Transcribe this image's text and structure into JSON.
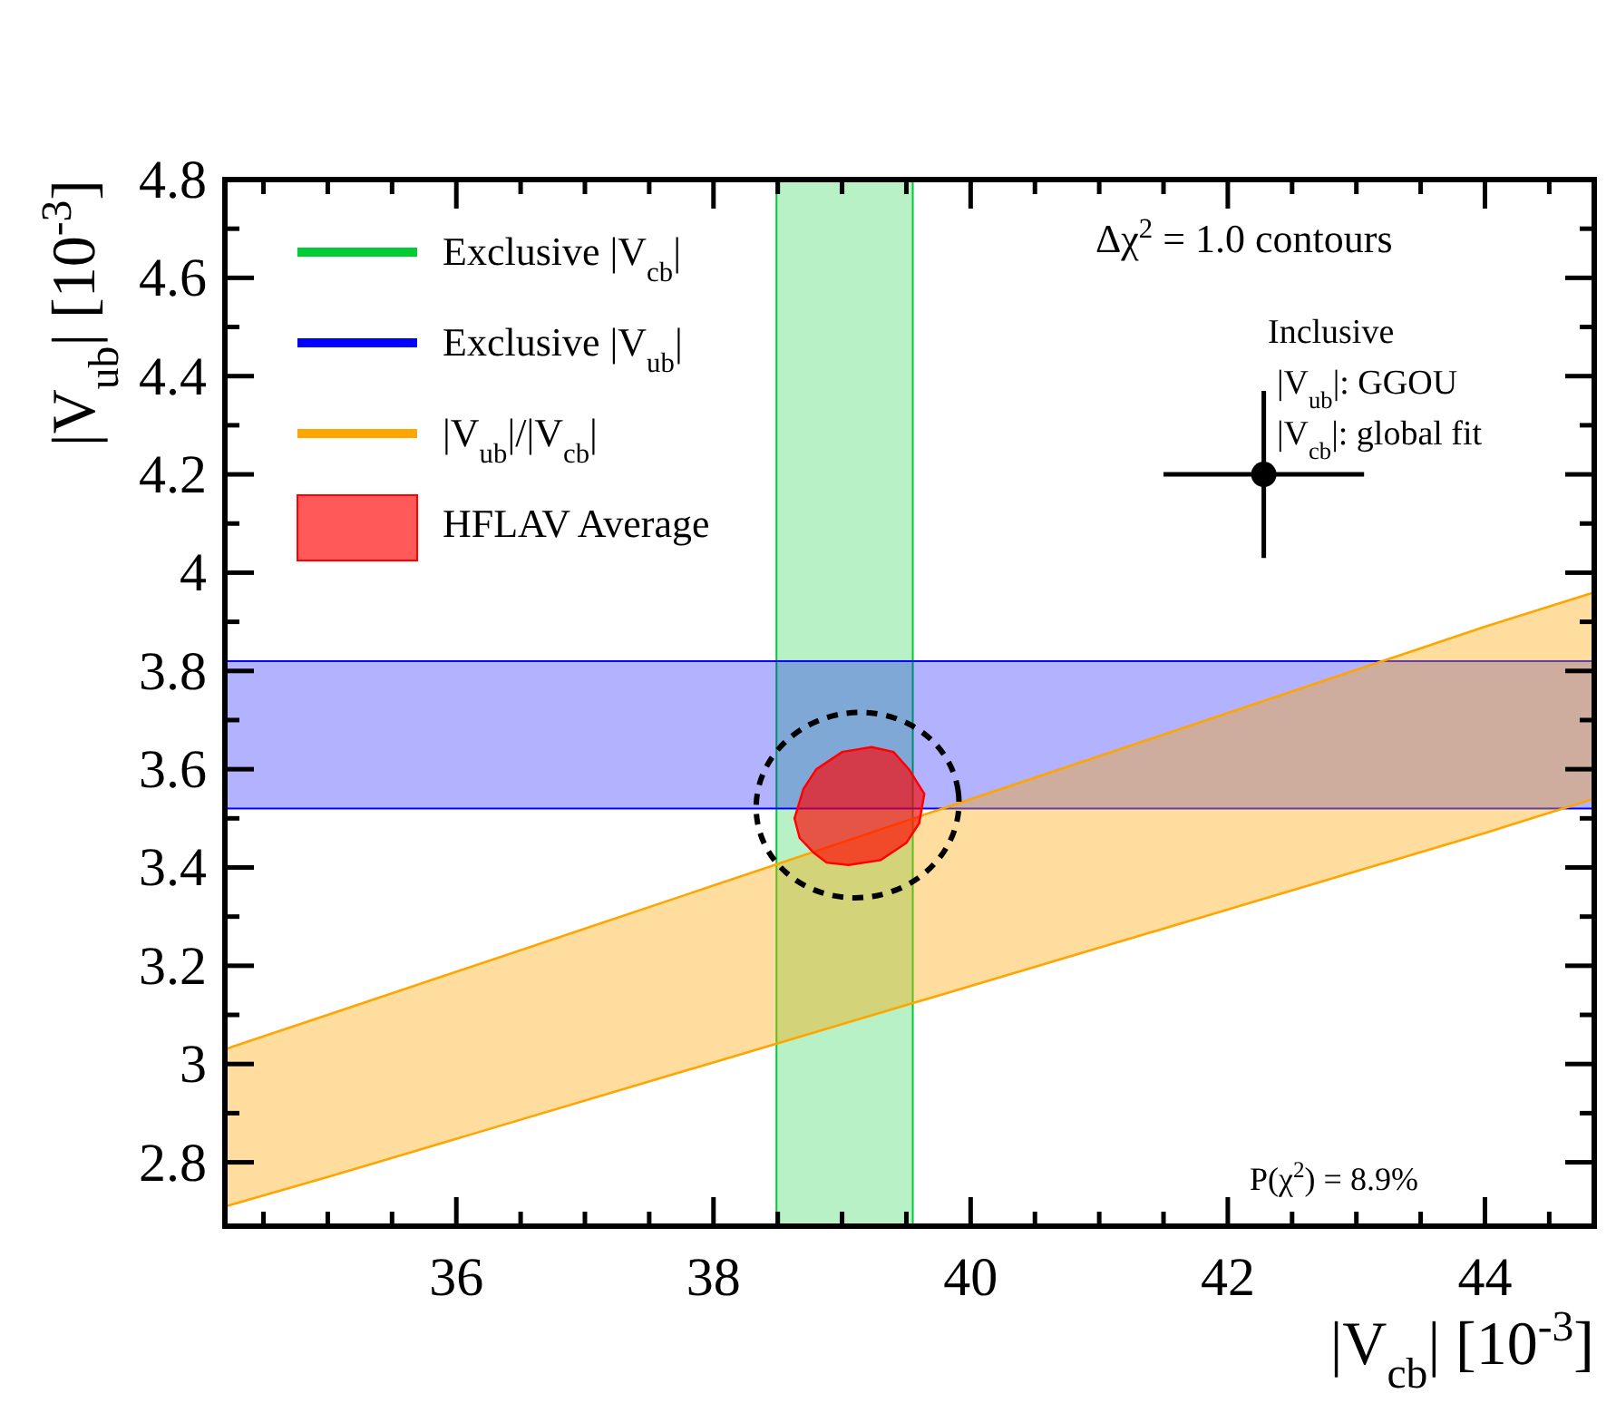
{
  "chart_data": {
    "type": "area",
    "xlabel": "|V$_{cb}$| [10$^{-3}$]",
    "ylabel": "|V$_{ub}$| [10$^{-3}$]",
    "xlim": [
      34.2,
      44.85
    ],
    "ylim": [
      2.67,
      4.8
    ],
    "xticks": [
      {
        "value": 34.5,
        "label": null
      },
      {
        "value": 35,
        "label": null
      },
      {
        "value": 35.5,
        "label": null
      },
      36,
      {
        "value": 36.5,
        "label": null
      },
      {
        "value": 37,
        "label": null
      },
      {
        "value": 37.5,
        "label": null
      },
      38,
      {
        "value": 38.5,
        "label": null
      },
      {
        "value": 39,
        "label": null
      },
      {
        "value": 39.5,
        "label": null
      },
      40,
      {
        "value": 40.5,
        "label": null
      },
      {
        "value": 41,
        "label": null
      },
      {
        "value": 41.5,
        "label": null
      },
      42,
      {
        "value": 42.5,
        "label": null
      },
      {
        "value": 43,
        "label": null
      },
      {
        "value": 43.5,
        "label": null
      },
      44,
      {
        "value": 44.5,
        "label": null
      }
    ],
    "yticks": [
      2.8,
      {
        "value": 2.9,
        "label": null
      },
      3,
      {
        "value": 3.1,
        "label": null
      },
      3.2,
      {
        "value": 3.3,
        "label": null
      },
      3.4,
      {
        "value": 3.5,
        "label": null
      },
      3.6,
      {
        "value": 3.7,
        "label": null
      },
      3.8,
      {
        "value": 3.9,
        "label": null
      },
      4,
      {
        "value": 4.1,
        "label": null
      },
      4.2,
      {
        "value": 4.3,
        "label": null
      },
      4.4,
      {
        "value": 4.5,
        "label": null
      },
      4.6,
      {
        "value": 4.7,
        "label": null
      },
      4.8
    ],
    "bands": [
      {
        "axis": "x",
        "from": 38.49,
        "to": 39.55,
        "label": "Exclusive |V$_{cb}$|",
        "color": "#00cc33"
      },
      {
        "axis": "y",
        "from": 3.52,
        "to": 3.82,
        "label": "Exclusive |V$_{ub}$|",
        "color": "#0000ff"
      }
    ],
    "series": [
      {
        "name": "|V$_{ub}$|/|V$_{cb}$|",
        "color": "#ffa500",
        "x": [
          34.2,
          35,
          44,
          44.85
        ],
        "values": [
          null,
          null,
          null,
          null
        ],
        "upper": [
          3.03,
          3.1,
          3.89,
          3.96
        ],
        "lower": [
          2.71,
          2.77,
          3.47,
          3.54
        ]
      },
      {
        "name": "HFLAV Average",
        "color": "#ff0000",
        "x": [
          39.23,
          39.4,
          39.52,
          39.64,
          39.6,
          39.5,
          39.3,
          39.05,
          38.88,
          38.78,
          38.67,
          38.63,
          38.7,
          38.8,
          39.0,
          39.23
        ],
        "values": [
          3.645,
          3.635,
          3.6,
          3.55,
          3.49,
          3.45,
          3.415,
          3.405,
          3.41,
          3.43,
          3.46,
          3.5,
          3.56,
          3.6,
          3.635,
          3.645
        ]
      },
      {
        "type": "scatter",
        "marker": "circle",
        "color": "#000000",
        "x": [
          42.28
        ],
        "values": [
          4.2
        ],
        "errors": [
          0.17
        ],
        "xerrors": [
          0.78
        ]
      }
    ],
    "annotations": [
      "Δχ$^{2}$ = 1.0 contours",
      "Inclusive",
      "|V$_{ub}$|: GGOU",
      "|V$_{cb}$|: global fit",
      "P(χ$^{2}$) = 8.9%"
    ],
    "legend": "top left"
  }
}
